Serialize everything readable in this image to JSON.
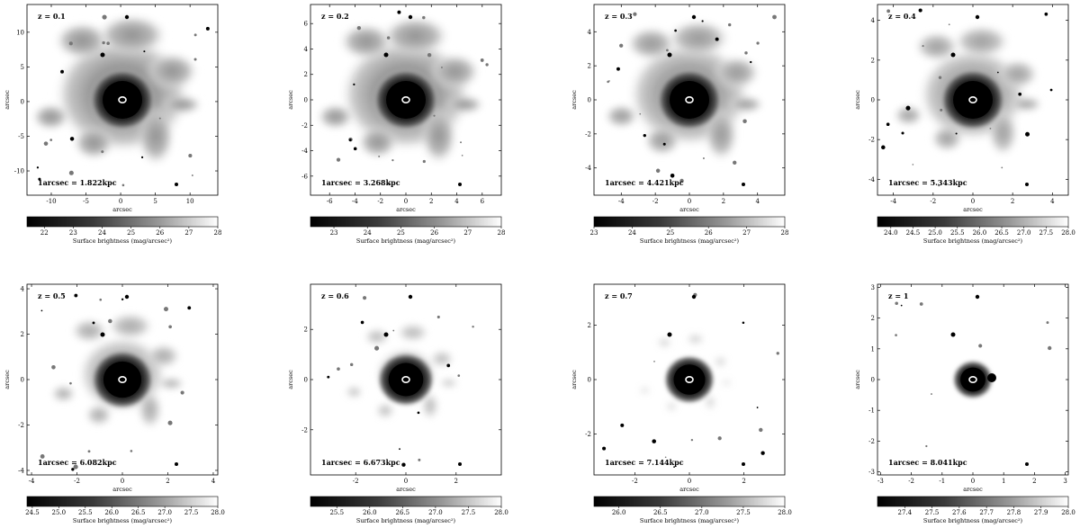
{
  "figure": {
    "panels": [
      {
        "z_label": "z = 0.1",
        "scale_label": "1arcsec = 1.822kpc",
        "x_ticks": [
          -10,
          -5,
          0,
          5,
          10
        ],
        "y_ticks": [
          10,
          5,
          0,
          -5,
          -10
        ],
        "x_range": [
          -13.5,
          14
        ],
        "y_range": [
          -13.5,
          14
        ],
        "xlabel": "arcsec",
        "ylabel": "arcsec",
        "cb_ticks": [
          "22",
          "23",
          "24",
          "25",
          "26",
          "27",
          "28"
        ],
        "cb_range": [
          21.4,
          28
        ],
        "cb_label": "Surface brightness (mag/arcsec²)",
        "core_scale": 1.0,
        "halo_scale": 1.0
      },
      {
        "z_label": "z = 0.2",
        "scale_label": "1arcsec = 3.268kpc",
        "x_ticks": [
          -6,
          -4,
          -2,
          0,
          2,
          4,
          6
        ],
        "y_ticks": [
          6,
          4,
          2,
          0,
          -2,
          -4,
          -6
        ],
        "x_range": [
          -7.5,
          7.5
        ],
        "y_range": [
          -7.5,
          7.5
        ],
        "xlabel": "arcsec",
        "ylabel": "arcsec",
        "cb_ticks": [
          "23",
          "24",
          "25",
          "26",
          "27",
          "28"
        ],
        "cb_range": [
          22.3,
          28
        ],
        "cb_label": "Surface brightness (mag/arcsec²)",
        "core_scale": 1.0,
        "halo_scale": 0.97
      },
      {
        "z_label": "z = 0.3",
        "scale_label": "1arcsec = 4.421kpc",
        "x_ticks": [
          -4,
          -2,
          0,
          2,
          4
        ],
        "y_ticks": [
          4,
          2,
          0,
          -2,
          -4
        ],
        "x_range": [
          -5.6,
          5.6
        ],
        "y_range": [
          -5.6,
          5.6
        ],
        "xlabel": "arcsec",
        "ylabel": "arcsec",
        "cb_ticks": [
          "23",
          "24",
          "25",
          "26",
          "27",
          "28"
        ],
        "cb_range": [
          23,
          28
        ],
        "cb_label": "Surface brightness (mag/arcsec²)",
        "core_scale": 1.0,
        "halo_scale": 0.9
      },
      {
        "z_label": "z = 0.4",
        "scale_label": "1arcsec = 5.343kpc",
        "x_ticks": [
          -4,
          -2,
          0,
          2,
          4
        ],
        "y_ticks": [
          4,
          2,
          0,
          -2,
          -4
        ],
        "x_range": [
          -4.8,
          4.8
        ],
        "y_range": [
          -4.8,
          4.8
        ],
        "xlabel": "arcsec",
        "ylabel": "arcsec",
        "cb_ticks": [
          "24.0",
          "24.5",
          "25.0",
          "25.5",
          "26.0",
          "26.5",
          "27.0",
          "27.5",
          "28.0"
        ],
        "cb_range": [
          23.7,
          28
        ],
        "cb_label": "Surface brightness (mag/arcsec²)",
        "core_scale": 1.0,
        "halo_scale": 0.8
      },
      {
        "z_label": "z = 0.5",
        "scale_label": "1arcsec = 6.082kpc",
        "x_ticks": [
          -4,
          -2,
          0,
          2,
          4
        ],
        "y_ticks": [
          4,
          2,
          0,
          -2,
          -4
        ],
        "x_range": [
          -4.2,
          4.2
        ],
        "y_range": [
          -4.2,
          4.2
        ],
        "xlabel": "arcsec",
        "ylabel": "arcsec",
        "cb_ticks": [
          "24.5",
          "25.0",
          "25.5",
          "26.0",
          "26.5",
          "27.0",
          "27.5",
          "28.0"
        ],
        "cb_range": [
          24.4,
          28
        ],
        "cb_label": "Surface brightness (mag/arcsec²)",
        "core_scale": 0.95,
        "halo_scale": 0.65
      },
      {
        "z_label": "z = 0.6",
        "scale_label": "1arcsec = 6.673kpc",
        "x_ticks": [
          -2,
          0,
          2
        ],
        "y_ticks": [
          2,
          0,
          -2
        ],
        "x_range": [
          -3.8,
          3.8
        ],
        "y_range": [
          -3.8,
          3.8
        ],
        "xlabel": "arcsec",
        "ylabel": "arcsec",
        "cb_ticks": [
          "25.5",
          "26.0",
          "26.5",
          "27.0",
          "27.5",
          "28.0"
        ],
        "cb_range": [
          25.1,
          28
        ],
        "cb_label": "Surface brightness (mag/arcsec²)",
        "core_scale": 0.85,
        "halo_scale": 0.45
      },
      {
        "z_label": "z = 0.7",
        "scale_label": "1arcsec = 7.144kpc",
        "x_ticks": [
          -2,
          0,
          2
        ],
        "y_ticks": [
          2,
          0,
          -2
        ],
        "x_range": [
          -3.5,
          3.5
        ],
        "y_range": [
          -3.5,
          3.5
        ],
        "xlabel": "arcsec",
        "ylabel": "arcsec",
        "cb_ticks": [
          "26.0",
          "26.5",
          "27.0",
          "27.5",
          "28.0"
        ],
        "cb_range": [
          25.7,
          28
        ],
        "cb_label": "Surface brightness (mag/arcsec²)",
        "core_scale": 0.75,
        "halo_scale": 0.25
      },
      {
        "z_label": "z = 1",
        "scale_label": "1arcsec = 8.041kpc",
        "x_ticks": [
          -3,
          -2,
          -1,
          0,
          1,
          2,
          3
        ],
        "y_ticks": [
          3,
          2,
          1,
          0,
          -1,
          -2,
          -3
        ],
        "x_range": [
          -3.1,
          3.1
        ],
        "y_range": [
          -3.1,
          3.1
        ],
        "xlabel": "arcsec",
        "ylabel": "arcsec",
        "cb_ticks": [
          "27.4",
          "27.5",
          "27.6",
          "27.7",
          "27.8",
          "27.9",
          "28.0"
        ],
        "cb_range": [
          27.3,
          28
        ],
        "cb_label": "Surface brightness (mag/arcsec²)",
        "core_scale": 0.55,
        "halo_scale": 0.0
      }
    ]
  }
}
